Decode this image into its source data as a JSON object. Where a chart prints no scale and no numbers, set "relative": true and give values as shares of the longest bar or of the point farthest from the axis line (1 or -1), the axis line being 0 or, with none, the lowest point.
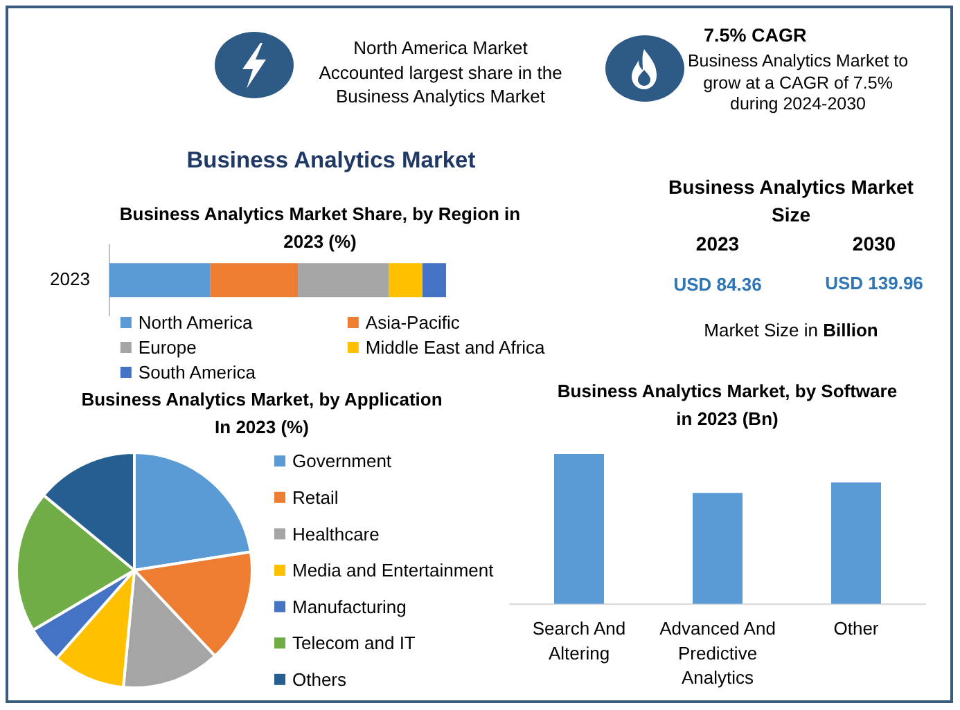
{
  "chart_data": [
    {
      "type": "other",
      "title": "Business Analytics Market",
      "annotations": [
        "North America Market Accounted largest share in the Business Analytics Market",
        "7.5% CAGR",
        "Business Analytics Market to grow at a CAGR of 7.5% during 2024-2030"
      ]
    },
    {
      "type": "bar",
      "title": "Business Analytics Market Share, by Region in 2023 (%)",
      "orientation": "horizontal",
      "stacked": true,
      "relative": true,
      "categories": [
        "2023"
      ],
      "series": [
        {
          "name": "North America",
          "color": "#5b9bd5",
          "values": [
            0.3
          ]
        },
        {
          "name": "Asia-Pacific",
          "color": "#ed7d31",
          "values": [
            0.26
          ]
        },
        {
          "name": "Europe",
          "color": "#a5a5a5",
          "values": [
            0.27
          ]
        },
        {
          "name": "Middle East and Africa",
          "color": "#ffc000",
          "values": [
            0.1
          ]
        },
        {
          "name": "South America",
          "color": "#4472c4",
          "values": [
            0.07
          ]
        }
      ],
      "legend": "bottom"
    },
    {
      "type": "other",
      "title": "Business Analytics Market Size",
      "annotations": [
        "2023",
        "2030",
        "USD 84.36",
        "USD 139.96",
        "Market Size in Billion"
      ]
    },
    {
      "type": "pie",
      "title": "Business Analytics Market, by Application In 2023 (%)",
      "categories": [
        "Government",
        "Retail",
        "Healthcare",
        "Media and Entertainment",
        "Manufacturing",
        "Telecom and IT",
        "Others"
      ],
      "values": [
        22.5,
        15.5,
        13.5,
        10,
        5,
        19.5,
        14
      ],
      "colors": [
        "#5b9bd5",
        "#ed7d31",
        "#a5a5a5",
        "#ffc000",
        "#4472c4",
        "#70ad47",
        "#255e91"
      ],
      "legend": "right"
    },
    {
      "type": "bar",
      "title": "Business Analytics Market, by Software in 2023 (Bn)",
      "categories": [
        "Search And Altering",
        "Advanced And Predictive Analytics",
        "Other"
      ],
      "values": [
        1,
        0.74,
        0.81
      ],
      "color": "#5b9bd5",
      "relative": true
    }
  ]
}
